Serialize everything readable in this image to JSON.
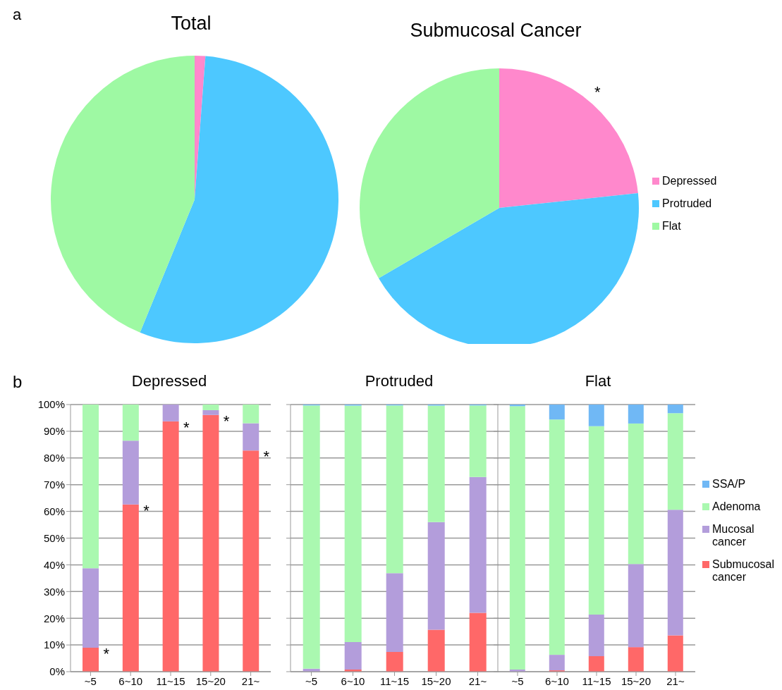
{
  "chart_data": [
    {
      "type": "pie",
      "title": "Total",
      "categories": [
        null,
        null,
        null
      ],
      "values": [
        1.2,
        55,
        43.8
      ],
      "colors": [
        "#ff88cc",
        "#4dc8ff",
        "#9ef9a3"
      ],
      "legend": false,
      "annotations": [
        "a"
      ]
    },
    {
      "type": "pie",
      "title": "Submucosal Cancer",
      "categories": [
        "Depressed",
        "Protruded",
        "Flat"
      ],
      "values": [
        23.3,
        43.3,
        33.4
      ],
      "colors": [
        "#ff88cc",
        "#4dc8ff",
        "#9ef9a3"
      ],
      "legend": "right",
      "annotations": [
        "*"
      ]
    },
    {
      "type": "bar",
      "stacked": true,
      "title": "Depressed",
      "categories": [
        "~5",
        "6~10",
        "11~15",
        "15~20",
        "21~"
      ],
      "series": [
        {
          "color": "#ff6868",
          "values": [
            9.0,
            62.6,
            93.7,
            96.1,
            82.8
          ]
        },
        {
          "color": "#b39ddb",
          "values": [
            29.7,
            23.9,
            6.3,
            1.8,
            10.2
          ]
        },
        {
          "color": "#aaf8b0",
          "values": [
            61.3,
            13.5,
            0,
            2.1,
            7.0
          ]
        },
        {
          "color": "#70b8f5",
          "values": [
            0,
            0,
            0,
            0,
            0
          ]
        }
      ],
      "ylim": [
        0,
        100
      ],
      "yticks": [
        {
          "value": 0,
          "label": "0%"
        },
        {
          "value": 10,
          "label": "10%"
        },
        {
          "value": 20,
          "label": "20%"
        },
        {
          "value": 30,
          "label": "30%"
        },
        {
          "value": 40,
          "label": "40%"
        },
        {
          "value": 50,
          "label": "50%"
        },
        {
          "value": 60,
          "label": "60%"
        },
        {
          "value": 70,
          "label": "70%"
        },
        {
          "value": 80,
          "label": "80%"
        },
        {
          "value": 90,
          "label": "90%"
        },
        {
          "value": 100,
          "label": "100%"
        }
      ],
      "grid": "y",
      "legend": false,
      "annotations": [
        "b",
        {
          "text": "*",
          "x": "~5",
          "y": 9.0
        },
        {
          "text": "*",
          "x": "6~10",
          "y": 62.6
        },
        {
          "text": "*",
          "x": "11~15",
          "y": 93.7
        },
        {
          "text": "*",
          "x": "15~20",
          "y": 96.1
        },
        {
          "text": "*",
          "x": "21~",
          "y": 82.8
        }
      ]
    },
    {
      "type": "bar",
      "stacked": true,
      "title": "Protruded",
      "categories": [
        "~5",
        "6~10",
        "11~15",
        "15~20",
        "21~"
      ],
      "series": [
        {
          "color": "#ff6868",
          "values": [
            0,
            0.8,
            7.4,
            15.7,
            22.0
          ]
        },
        {
          "color": "#b39ddb",
          "values": [
            1.1,
            10.3,
            29.5,
            40.3,
            50.9
          ]
        },
        {
          "color": "#aaf8b0",
          "values": [
            98.6,
            88.5,
            62.8,
            43.6,
            26.8
          ]
        },
        {
          "color": "#70b8f5",
          "values": [
            0.3,
            0.4,
            0.3,
            0.4,
            0.3
          ]
        }
      ],
      "ylim": [
        0,
        100
      ],
      "yticks": [
        0,
        10,
        20,
        30,
        40,
        50,
        60,
        70,
        80,
        90,
        100
      ],
      "tick_labels": "x",
      "grid": "y",
      "legend": false
    },
    {
      "type": "bar",
      "stacked": true,
      "title": "Flat",
      "categories": [
        "~5",
        "6~10",
        "11~15",
        "15~20",
        "21~"
      ],
      "series": [
        {
          "name": "Submucosal cancer",
          "color": "#ff6868",
          "values": [
            0,
            0.5,
            5.8,
            9.2,
            13.6
          ]
        },
        {
          "name": "Mucosal cancer",
          "color": "#b39ddb",
          "values": [
            0.8,
            5.8,
            15.6,
            31.1,
            47.0
          ]
        },
        {
          "name": "Adenoma",
          "color": "#aaf8b0",
          "values": [
            98.6,
            88.1,
            70.5,
            52.6,
            36.2
          ]
        },
        {
          "name": "SSA/P",
          "color": "#70b8f5",
          "values": [
            0.6,
            5.6,
            8.1,
            7.1,
            3.2
          ]
        }
      ],
      "ylim": [
        0,
        100
      ],
      "yticks": [
        0,
        10,
        20,
        30,
        40,
        50,
        60,
        70,
        80,
        90,
        100
      ],
      "tick_labels": "x",
      "grid": "y",
      "legend": "right"
    }
  ]
}
